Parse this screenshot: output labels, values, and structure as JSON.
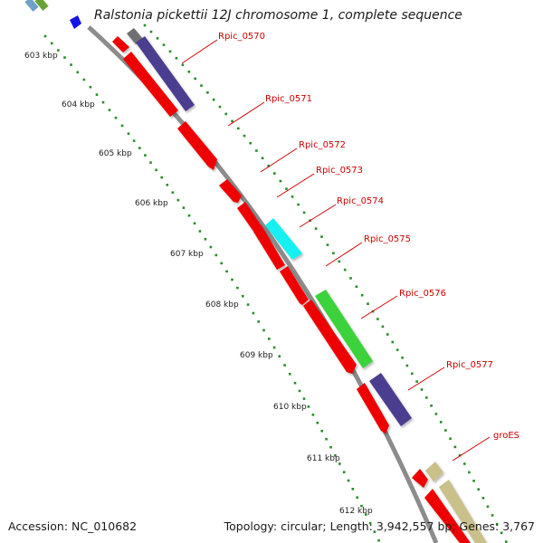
{
  "title": "Ralstonia pickettii 12J chromosome 1, complete sequence",
  "footer": {
    "accession": "Accession: NC_010682",
    "topology": "Topology: circular; Length: 3,942,557 bp; Genes: 3,767"
  },
  "colors": {
    "backbone": "#8c8c8c",
    "red_gene": "#ee0000",
    "purple_gene": "#4b3d8f",
    "cyan_gene": "#19f0f0",
    "green_gene": "#3ad23a",
    "khaki_gene": "#c9c08a",
    "gray_gene": "#6f6f6f",
    "scale_dots": "#2a8a2a",
    "label_red": "#cc0000"
  },
  "kbp_ticks": [
    "603 kbp",
    "604 kbp",
    "605 kbp",
    "606 kbp",
    "607 kbp",
    "608 kbp",
    "609 kbp",
    "610 kbp",
    "611 kbp",
    "612 kbp"
  ],
  "gene_labels": [
    "Rpic_0570",
    "Rpic_0571",
    "Rpic_0572",
    "Rpic_0573",
    "Rpic_0574",
    "Rpic_0575",
    "Rpic_0576",
    "Rpic_0577",
    "groES"
  ]
}
